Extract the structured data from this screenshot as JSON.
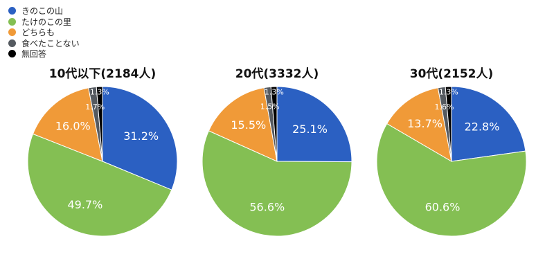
{
  "legend": [
    {
      "label": "きのこの山",
      "color": "#2b60c2"
    },
    {
      "label": "たけのこの里",
      "color": "#84bf53"
    },
    {
      "label": "どちらも",
      "color": "#f09a38"
    },
    {
      "label": "食べたことない",
      "color": "#555a60"
    },
    {
      "label": "無回答",
      "color": "#000000"
    }
  ],
  "chart_data": [
    {
      "type": "pie",
      "title": "10代以下(2184人)",
      "categories": [
        "きのこの山",
        "たけのこの里",
        "どちらも",
        "食べたことない",
        "無回答"
      ],
      "values": [
        31.2,
        49.7,
        16.0,
        1.7,
        1.3
      ],
      "labels": [
        "31.2%",
        "49.7%",
        "16.0%",
        "1.7%",
        "1.3%"
      ]
    },
    {
      "type": "pie",
      "title": "20代(3332人)",
      "categories": [
        "きのこの山",
        "たけのこの里",
        "どちらも",
        "食べたことない",
        "無回答"
      ],
      "values": [
        25.1,
        56.6,
        15.5,
        1.5,
        1.3
      ],
      "labels": [
        "25.1%",
        "56.6%",
        "15.5%",
        "1.5%",
        "1.3%"
      ]
    },
    {
      "type": "pie",
      "title": "30代(2152人)",
      "categories": [
        "きのこの山",
        "たけのこの里",
        "どちらも",
        "食べたことない",
        "無回答"
      ],
      "values": [
        22.8,
        60.6,
        13.7,
        1.6,
        1.3
      ],
      "labels": [
        "22.8%",
        "60.6%",
        "13.7%",
        "1.6%",
        "1.3%"
      ]
    }
  ]
}
